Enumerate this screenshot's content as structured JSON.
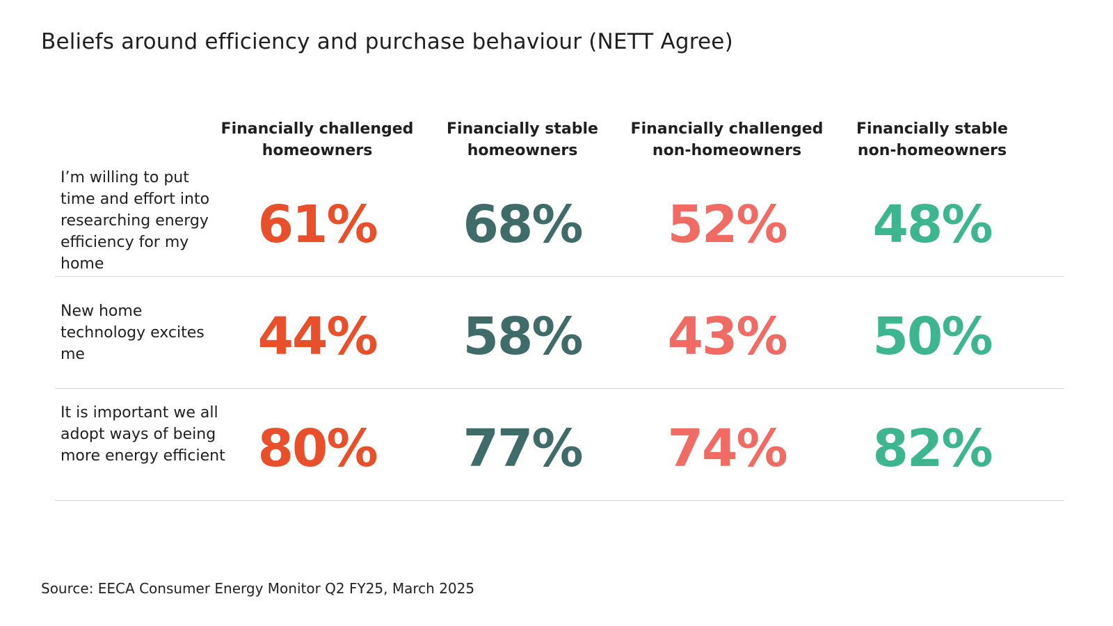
{
  "title": "Beliefs around efficiency and purchase behaviour (NETT Agree)",
  "source": "Source: EECA Consumer Energy Monitor Q2 FY25, March 2025",
  "colors": {
    "fc_homeowners": "#e8502c",
    "fs_homeowners": "#3f6b68",
    "fc_nonhomeowners": "#ef6b64",
    "fs_nonhomeowners": "#3db58f",
    "divider": "#d4d4d4"
  },
  "chart_data": {
    "type": "table",
    "title": "Beliefs around efficiency and purchase behaviour (NETT Agree)",
    "columns": [
      {
        "line1": "Financially challenged",
        "line2": "homeowners"
      },
      {
        "line1": "Financially stable",
        "line2": "homeowners"
      },
      {
        "line1": "Financially challenged",
        "line2": "non-homeowners"
      },
      {
        "line1": "Financially stable",
        "line2": "non-homeowners"
      }
    ],
    "rows": [
      {
        "label": "I’m willing to put time and effort into researching energy efficiency for my home",
        "values": [
          61,
          68,
          52,
          48
        ],
        "display": [
          "61%",
          "68%",
          "52%",
          "48%"
        ]
      },
      {
        "label": "New home technology excites me",
        "values": [
          44,
          58,
          43,
          50
        ],
        "display": [
          "44%",
          "58%",
          "43%",
          "50%"
        ]
      },
      {
        "label": "It is important we all adopt ways of being more energy efficient",
        "values": [
          80,
          77,
          74,
          82
        ],
        "display": [
          "80%",
          "77%",
          "74%",
          "82%"
        ]
      }
    ],
    "unit": "%"
  }
}
